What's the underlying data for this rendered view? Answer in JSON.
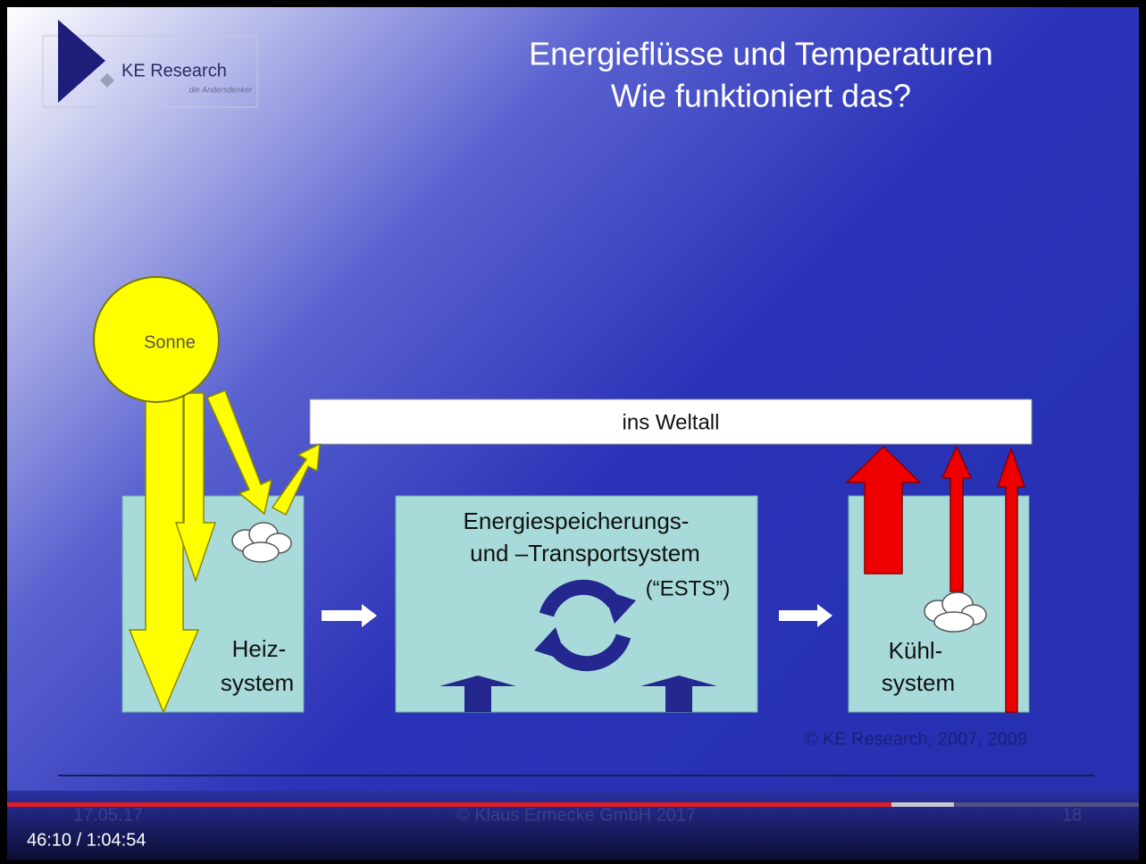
{
  "logo": {
    "name": "KE Research",
    "tagline": "die Andersdenker"
  },
  "title": [
    "Energieflüsse und Temperaturen",
    "Wie funktioniert das?"
  ],
  "diagram": {
    "sun": "Sonne",
    "space": "ins Weltall",
    "heating": [
      "Heiz-",
      "system"
    ],
    "storage": [
      "Energiespeicherungs-",
      "und –Transportsystem",
      "(“ESTS”)"
    ],
    "cooling": [
      "Kühl-",
      "system"
    ],
    "copyright": "© KE Research, 2007, 2009"
  },
  "footer": {
    "date": "17.05.17",
    "company": "© Klaus Ermecke GmbH 2017",
    "page": "18"
  },
  "player": {
    "time": "46:10 / 1:04:54"
  }
}
